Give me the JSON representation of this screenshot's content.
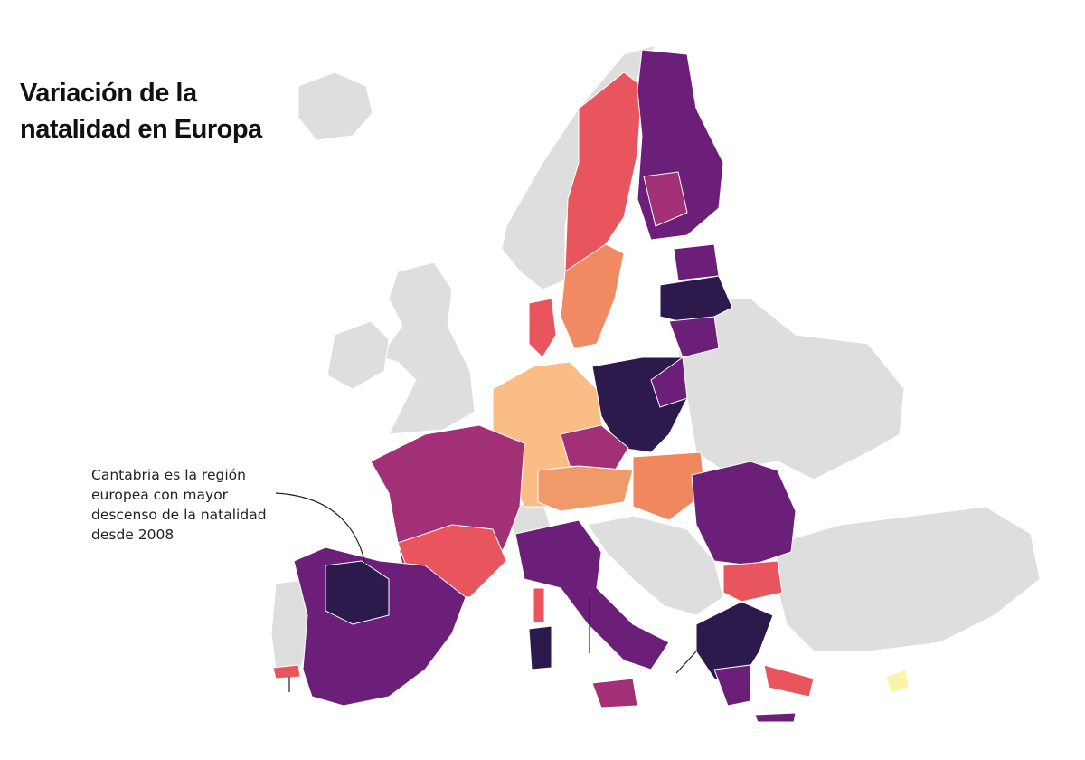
{
  "title_lines": [
    "Variación de la",
    "natalidad en Europa"
  ],
  "annotation_lines": [
    "Cantabria es la región",
    "europea con mayor",
    "descenso de la natalidad",
    "desde 2008"
  ]
}
